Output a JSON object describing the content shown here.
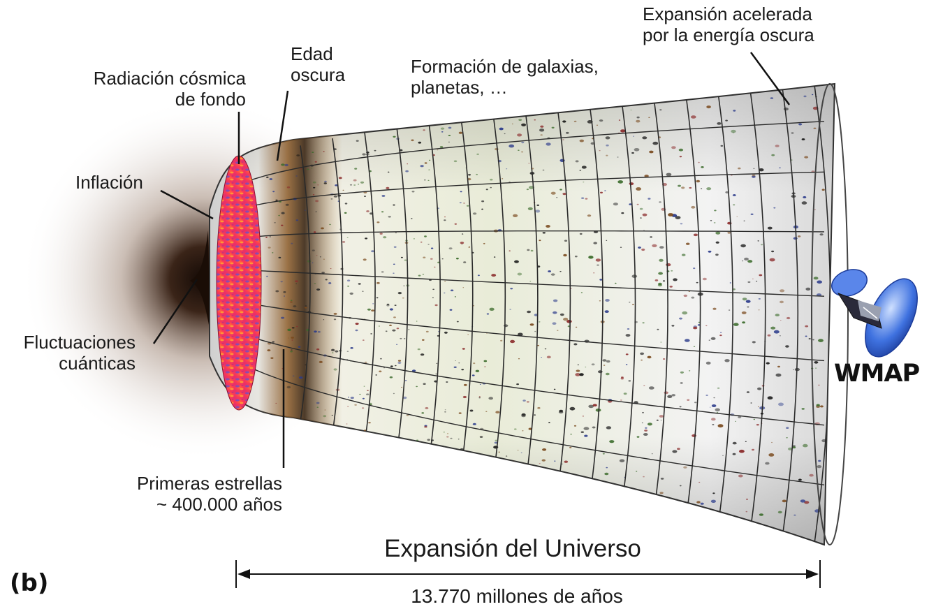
{
  "panel_label": "(b)",
  "labels": {
    "cmb": [
      "Radiación cósmica",
      "de fondo"
    ],
    "dark_age": [
      "Edad",
      "oscura"
    ],
    "galaxies": [
      "Formación de galaxias,",
      "planetas, …"
    ],
    "dark_energy": [
      "Expansión acelerada",
      "por la energía oscura"
    ],
    "inflation": "Inflación",
    "fluctuations": [
      "Fluctuaciones",
      "cuánticas"
    ],
    "first_stars": [
      "Primeras estrellas",
      "~ 400.000 años"
    ],
    "spacecraft": "WMAP"
  },
  "timeline": {
    "title": "Expansión del Universo",
    "duration": "13.770 millones de años"
  },
  "colors": {
    "text": "#1a1a1a",
    "grid": "#2a2a2a",
    "cmb_red": "#ff3b3b",
    "cmb_magenta": "#c0307a",
    "cmb_blue": "#5b4dd8",
    "dark_age_brown": "#9a6a2e",
    "spacecraft_blue": "#3f72e0"
  }
}
